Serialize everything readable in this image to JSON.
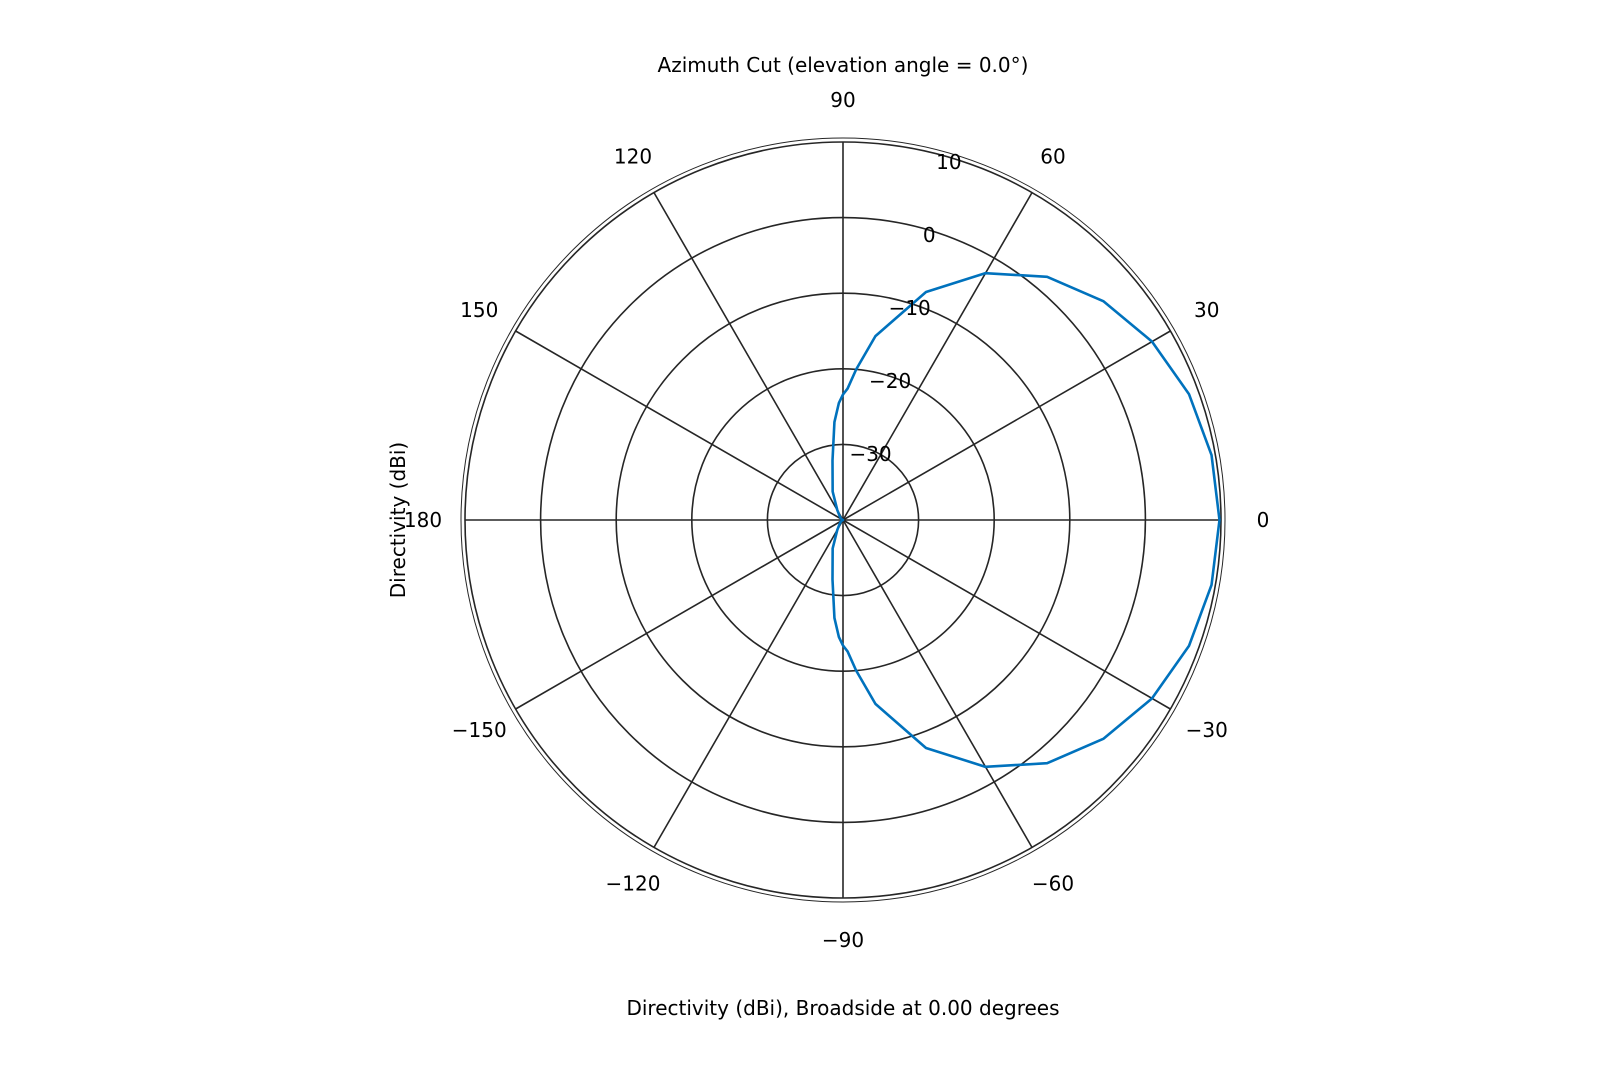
{
  "chart_data": {
    "type": "line",
    "subtype": "polar",
    "title": "Azimuth Cut (elevation angle = 0.0°)",
    "xlabel": "Directivity (dBi), Broadside at 0.00 degrees",
    "ylabel": "Directivity (dBi)",
    "angle_unit": "degrees",
    "angle_ticks": [
      0,
      30,
      60,
      90,
      120,
      150,
      180,
      -150,
      -120,
      -90,
      -60,
      -30
    ],
    "angle_tick_labels": [
      "0",
      "30",
      "60",
      "90",
      "120",
      "150",
      "180",
      "−150",
      "−120",
      "−90",
      "−60",
      "−30"
    ],
    "r_ticks": [
      -30,
      -20,
      -10,
      0,
      10
    ],
    "r_tick_labels": [
      "−30",
      "−20",
      "−10",
      "0",
      "10"
    ],
    "r_lim": [
      -40,
      10
    ],
    "r_label_angle_deg": 75,
    "series": [
      {
        "color": "#0072BD",
        "angles": [
          0,
          10,
          20,
          30,
          40,
          50,
          60,
          70,
          80,
          85,
          88,
          90,
          92,
          95,
          100,
          110,
          120,
          130,
          140,
          150,
          160,
          170,
          180,
          -170,
          -160,
          -150,
          -140,
          -130,
          -120,
          -110,
          -100,
          -95,
          -92,
          -90,
          -88,
          -85,
          -80,
          -70,
          -60,
          -50,
          -40,
          -30,
          -20,
          -10
        ],
        "values": [
          9.8,
          9.5,
          8.7,
          7.2,
          5.0,
          2.0,
          -2.3,
          -7.9,
          -15.3,
          -20.0,
          -22.6,
          -23.4,
          -24.5,
          -27.0,
          -32.0,
          -36.0,
          -38.5,
          -39.3,
          -39.6,
          -39.8,
          -39.9,
          -40.0,
          -40.0,
          -40.0,
          -39.9,
          -39.8,
          -39.6,
          -39.3,
          -38.5,
          -36.0,
          -32.0,
          -27.0,
          -24.5,
          -23.4,
          -22.6,
          -20.0,
          -15.3,
          -7.9,
          -2.3,
          2.0,
          5.0,
          7.2,
          8.7,
          9.5
        ]
      }
    ]
  }
}
